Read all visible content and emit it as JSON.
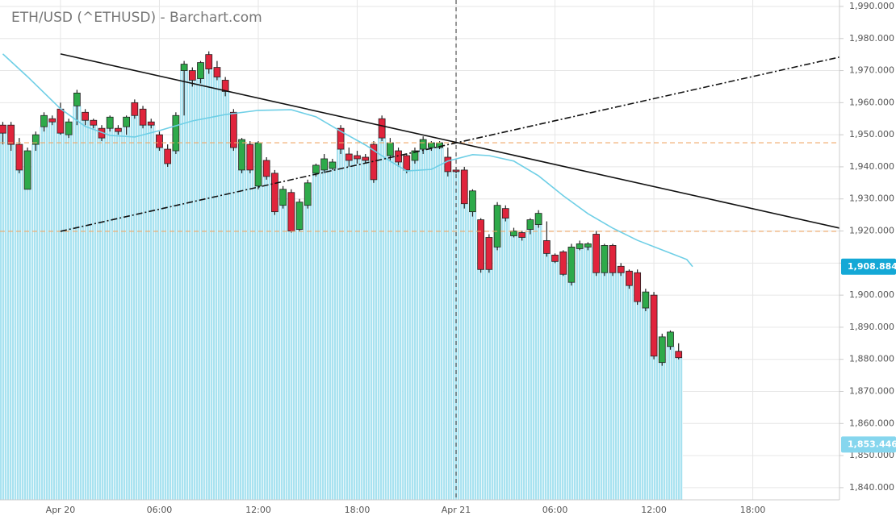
{
  "chart_data": {
    "type": "candlestick",
    "title": "ETH/USD (^ETHUSD) - Barchart.com",
    "x": [
      -3.5,
      -3,
      -2.5,
      -2,
      -1.5,
      -1,
      -0.5,
      0,
      0.5,
      1,
      1.5,
      2,
      2.5,
      3,
      3.5,
      4,
      4.5,
      5,
      5.5,
      6,
      6.5,
      7,
      7.5,
      8,
      8.5,
      9,
      9.5,
      10,
      10.5,
      11,
      11.5,
      12,
      12.5,
      13,
      13.5,
      14,
      14.5,
      15,
      15.5,
      16,
      16.5,
      17,
      17.5,
      18,
      18.5,
      19,
      19.5,
      20,
      20.5,
      21,
      21.5,
      22,
      22.5,
      23,
      23.5,
      24,
      24.5,
      25,
      25.5,
      26,
      26.5,
      27,
      27.5,
      28,
      28.5,
      29,
      29.5,
      30,
      30.5,
      31,
      31.5,
      32,
      32.5,
      33,
      33.5,
      34,
      34.5,
      35,
      35.5,
      36,
      36.5,
      37,
      37.5
    ],
    "open": [
      1953,
      1953,
      1947,
      1933,
      1947,
      1952.5,
      1955,
      1958,
      1950,
      1959,
      1957,
      1954.5,
      1952,
      1952,
      1952,
      1952.5,
      1960,
      1958,
      1954,
      1950,
      1945.5,
      1945,
      1970,
      1970,
      1967.5,
      1975,
      1971,
      1967,
      1957,
      1939,
      1947,
      1934,
      1942,
      1938,
      1928,
      1932,
      1920.5,
      1928,
      1938,
      1939,
      1939.5,
      1952,
      1944,
      1943.5,
      1943,
      1947,
      1955,
      1943.5,
      1945,
      1943.5,
      1942,
      1945.5,
      1946,
      1946,
      1943,
      1939,
      1939,
      1926,
      1923.5,
      1918,
      1915,
      1927,
      1918.5,
      1919.5,
      1920.5,
      1922,
      1917,
      1912.5,
      1913.5,
      1904,
      1914.5,
      1915,
      1919,
      1907,
      1915.5,
      1909,
      1907.5,
      1907,
      1896,
      1900,
      1879,
      1884,
      1882.5
    ],
    "high": [
      1954,
      1954,
      1949,
      1946,
      1951,
      1957,
      1956,
      1960,
      1955,
      1964,
      1958,
      1955,
      1953,
      1956,
      1953,
      1956,
      1961,
      1959,
      1955,
      1951,
      1947,
      1957,
      1973,
      1971,
      1973,
      1976,
      1973,
      1968,
      1958,
      1949,
      1948,
      1948,
      1943,
      1939,
      1934,
      1933,
      1930,
      1936,
      1941,
      1944,
      1942.5,
      1953,
      1946,
      1945,
      1944,
      1948,
      1956,
      1949,
      1946,
      1944,
      1946,
      1949.5,
      1948,
      1948,
      1946,
      1940,
      1940,
      1933,
      1924,
      1919,
      1929,
      1928,
      1921,
      1920,
      1924,
      1926.5,
      1923,
      1913,
      1914,
      1916,
      1917,
      1916.5,
      1920,
      1916,
      1916,
      1910,
      1908,
      1908,
      1902,
      1901,
      1888,
      1889,
      1885
    ],
    "low": [
      1947,
      1945,
      1938,
      1933,
      1945,
      1951,
      1953,
      1950,
      1949,
      1953,
      1953,
      1952,
      1948,
      1951,
      1950,
      1950,
      1955,
      1952,
      1952,
      1945,
      1940,
      1944,
      1956,
      1965,
      1966,
      1969,
      1967,
      1962,
      1945,
      1938,
      1938,
      1933,
      1936,
      1925,
      1927,
      1919.5,
      1920,
      1927,
      1937,
      1938,
      1939,
      1944,
      1940,
      1941,
      1941,
      1935,
      1948,
      1942,
      1940,
      1938,
      1941,
      1944,
      1945,
      1945.5,
      1937,
      1938,
      1927,
      1924.5,
      1907,
      1907,
      1914,
      1923,
      1918,
      1917,
      1919,
      1921,
      1912,
      1910,
      1906,
      1903,
      1914,
      1914,
      1906,
      1906,
      1906,
      1906,
      1902,
      1897,
      1895,
      1880,
      1878,
      1883,
      1880
    ],
    "close": [
      1950.5,
      1947,
      1939,
      1945,
      1950,
      1956,
      1954,
      1950.5,
      1954,
      1963,
      1954.5,
      1953,
      1949,
      1955.5,
      1951,
      1955.5,
      1956,
      1953,
      1953,
      1946,
      1941,
      1956,
      1972,
      1967,
      1972.5,
      1970.5,
      1968,
      1963.5,
      1946,
      1948.5,
      1939,
      1947.5,
      1937,
      1926,
      1933,
      1920,
      1929,
      1935,
      1940.5,
      1942.5,
      1941.5,
      1945.5,
      1942,
      1942.5,
      1942,
      1936,
      1949,
      1947.5,
      1941.5,
      1939,
      1945,
      1948.5,
      1947.5,
      1947.5,
      1938.5,
      1938.5,
      1928.5,
      1932.5,
      1908,
      1908,
      1928,
      1924,
      1920,
      1918,
      1923.5,
      1925.5,
      1913,
      1910.5,
      1906.5,
      1915,
      1916,
      1916,
      1907,
      1915.5,
      1907,
      1907,
      1903,
      1898,
      1901,
      1881,
      1887,
      1888.5,
      1880.5
    ],
    "up_color": "#2eaa4a",
    "down_color": "#e0243c",
    "moving_average": {
      "x": [
        -3.5,
        -2,
        0,
        1.5,
        3,
        4.5,
        6,
        8,
        10,
        12,
        14,
        15.5,
        17,
        18.5,
        20,
        21,
        22.5,
        23.5,
        25,
        26,
        27.5,
        29,
        30.5,
        32,
        33.5,
        35,
        36.5,
        38,
        38.35
      ],
      "values": [
        1975.2,
        1968.1,
        1958.1,
        1952.6,
        1949.8,
        1949.3,
        1951.3,
        1954.3,
        1956.3,
        1957.6,
        1957.8,
        1955.6,
        1951.1,
        1946.8,
        1941.8,
        1938.7,
        1939.2,
        1941.8,
        1943.8,
        1943.5,
        1941.8,
        1937.2,
        1931,
        1925.4,
        1920.9,
        1917.1,
        1914.1,
        1911.1,
        1908.884
      ],
      "color": "#6fcfe6"
    },
    "trend_lines": [
      {
        "x": [
          0,
          47.26
        ],
        "y": [
          1975.2,
          1920.9
        ],
        "style": "solid"
      },
      {
        "x": [
          0,
          47.26
        ],
        "y": [
          1919.9,
          1974.2
        ],
        "style": "dashdot"
      }
    ],
    "hlines": [
      1947.5,
      1919.9
    ],
    "hline_color": "#f0a868",
    "vline": 24,
    "price_labels": [
      {
        "value": 1908.884,
        "label": "1,908.884",
        "color": "#14a8d6"
      },
      {
        "value": 1853.446,
        "label": "1,853.446",
        "color": "#86d6ee"
      }
    ],
    "xlim": [
      -3.67,
      47.26
    ],
    "ylim": [
      1836.2,
      1992
    ],
    "xticks": [
      {
        "value": 0,
        "label": "Apr 20"
      },
      {
        "value": 6,
        "label": "06:00"
      },
      {
        "value": 12,
        "label": "12:00"
      },
      {
        "value": 18,
        "label": "18:00"
      },
      {
        "value": 24,
        "label": "Apr 21"
      },
      {
        "value": 30,
        "label": "06:00"
      },
      {
        "value": 36,
        "label": "12:00"
      },
      {
        "value": 42,
        "label": "18:00"
      }
    ],
    "yticks": [
      {
        "value": 1840,
        "label": "1,840.000"
      },
      {
        "value": 1850,
        "label": "1,850.000"
      },
      {
        "value": 1860,
        "label": "1,860.000"
      },
      {
        "value": 1870,
        "label": "1,870.000"
      },
      {
        "value": 1880,
        "label": "1,880.000"
      },
      {
        "value": 1890,
        "label": "1,890.000"
      },
      {
        "value": 1900,
        "label": "1,900.000"
      },
      {
        "value": 1910,
        "label": "1,910.000"
      },
      {
        "value": 1920,
        "label": "1,920.000"
      },
      {
        "value": 1930,
        "label": "1,930.000"
      },
      {
        "value": 1940,
        "label": "1,940.000"
      },
      {
        "value": 1950,
        "label": "1,950.000"
      },
      {
        "value": 1960,
        "label": "1,960.000"
      },
      {
        "value": 1970,
        "label": "1,970.000"
      },
      {
        "value": 1980,
        "label": "1,980.000"
      },
      {
        "value": 1990,
        "label": "1,990.000"
      }
    ],
    "grid": true
  }
}
